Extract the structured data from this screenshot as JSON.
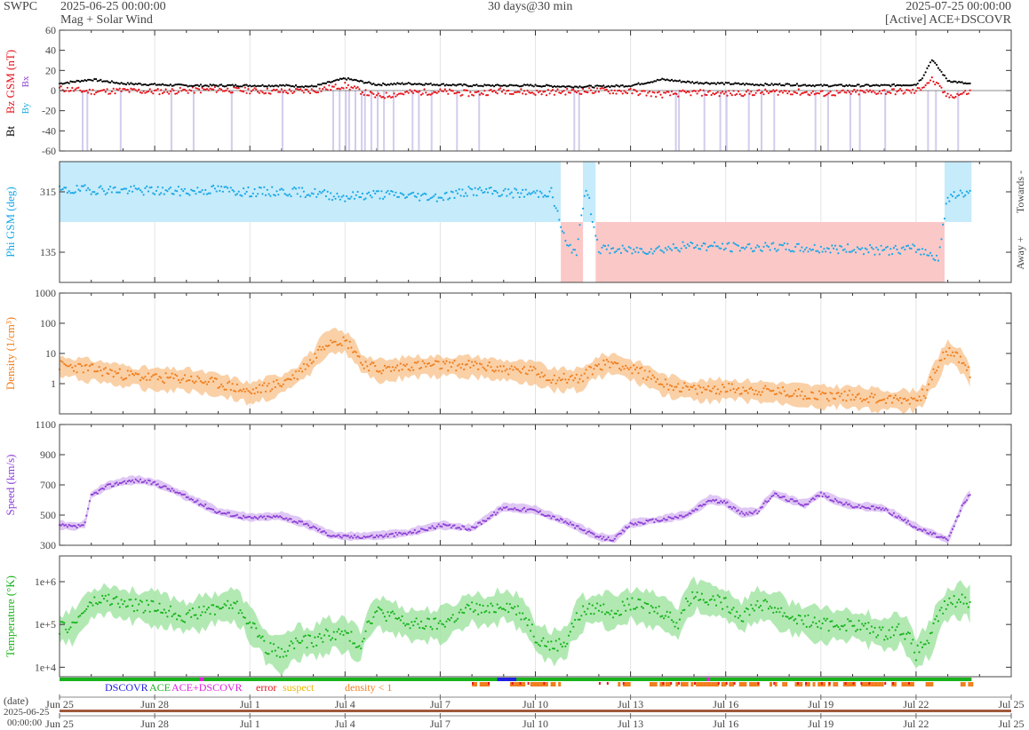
{
  "header": {
    "org": "SWPC",
    "start_time": "2025-06-25 00:00:00",
    "subtitle": "Mag + Solar Wind",
    "span": "30 days@30 min",
    "end_time": "2025-07-25 00:00:00",
    "source": "[Active] ACE+DSCOVR"
  },
  "colors": {
    "bt": "#000000",
    "bz": "#e8141c",
    "phi": "#19a8e6",
    "phi_towards": "#c6ebfb",
    "phi_away": "#fbc8c8",
    "density": "#f07f1e",
    "density_band": "#f8c08a",
    "speed": "#8c3fd6",
    "speed_band": "#d4b4f0",
    "temperature": "#18b41c",
    "temperature_band": "#98e29a",
    "southward_shade": "#c8bfe8",
    "grid": "#e4e4e4"
  },
  "time_axis": {
    "days": 30,
    "tick_days": [
      0,
      3,
      6,
      9,
      12,
      15,
      18,
      21,
      24,
      27,
      30
    ],
    "tick_labels": [
      "Jun 25",
      "Jun 28",
      "Jul 1",
      "Jul 4",
      "Jul 7",
      "Jul 10",
      "Jul 13",
      "Jul 16",
      "Jul 19",
      "Jul 22",
      "Jul 25"
    ],
    "date_label": "(date)",
    "start_date": "2025-06-25",
    "start_clock": "00:00:00",
    "data_end_day": 28.75
  },
  "chart_data": [
    {
      "type": "line",
      "title": "",
      "ylabel_parts": [
        "Bt",
        "Bz GSM (nT)"
      ],
      "legend_icons": [
        "Bx",
        "By"
      ],
      "ylim": [
        -60,
        60
      ],
      "yticks": [
        -60,
        -40,
        -20,
        0,
        20,
        40,
        60
      ],
      "series": [
        {
          "name": "Bt",
          "x": [
            0,
            1,
            2,
            3,
            4,
            5,
            6,
            7,
            8,
            9,
            10,
            11,
            12,
            13,
            14,
            15,
            16,
            17,
            18,
            19,
            20,
            21,
            22,
            23,
            24,
            25,
            26,
            27,
            27.2,
            27.5,
            28,
            28.75
          ],
          "values": [
            7,
            11,
            7,
            6,
            5,
            5,
            5,
            5,
            4,
            12,
            6,
            7,
            6,
            5,
            5,
            5,
            4,
            4,
            5,
            11,
            8,
            7,
            6,
            6,
            5,
            5,
            5,
            6,
            13,
            31,
            10,
            6
          ]
        },
        {
          "name": "Bz GSM",
          "x": [
            0,
            1,
            2,
            3,
            4,
            5,
            6,
            7,
            8,
            9,
            10,
            11,
            12,
            13,
            14,
            15,
            16,
            17,
            18,
            19,
            20,
            21,
            22,
            23,
            24,
            25,
            26,
            27,
            27.2,
            27.5,
            28,
            28.75
          ],
          "values": [
            2,
            -1,
            0,
            -1,
            0,
            1,
            0,
            -1,
            0,
            5,
            -6,
            -2,
            -1,
            -3,
            0,
            -2,
            -1,
            0,
            -1,
            -4,
            -2,
            -3,
            -2,
            -1,
            -3,
            -2,
            -1,
            -1,
            4,
            11,
            -6,
            -1
          ]
        }
      ],
      "southward_days": [
        0.7,
        0.85,
        1.9,
        3.5,
        4.2,
        5.4,
        7.0,
        8.6,
        8.8,
        9.0,
        9.1,
        9.3,
        9.5,
        9.6,
        9.8,
        10.0,
        10.2,
        10.5,
        11.1,
        11.3,
        11.7,
        12.5,
        13.2,
        16.2,
        16.35,
        19.4,
        19.5,
        20.3,
        20.8,
        21.0,
        21.7,
        22.1,
        22.5,
        23.8,
        24.2,
        24.9,
        25.2,
        26.0,
        27.35,
        27.6,
        28.3
      ]
    },
    {
      "type": "scatter",
      "title": "",
      "ylabel": "Phi GSM (deg)",
      "right_labels": [
        "Towards -",
        "Away +"
      ],
      "ylim": [
        45,
        405
      ],
      "yticks": [
        135,
        315
      ],
      "sectors": [
        {
          "start": 0,
          "end": 8.5,
          "sector": "towards"
        },
        {
          "start": 8.5,
          "end": 15.8,
          "sector": "towards"
        },
        {
          "start": 15.8,
          "end": 16.5,
          "sector": "away"
        },
        {
          "start": 16.5,
          "end": 16.9,
          "sector": "towards"
        },
        {
          "start": 16.9,
          "end": 27.9,
          "sector": "away"
        },
        {
          "start": 27.9,
          "end": 28.75,
          "sector": "towards"
        }
      ],
      "series": [
        {
          "name": "Phi GSM",
          "x": [
            0,
            1,
            2,
            3,
            4,
            5,
            6,
            7,
            8,
            9,
            10,
            11,
            12,
            13,
            14,
            15,
            15.5,
            16,
            16.3,
            16.6,
            17,
            18,
            19,
            20,
            21,
            22,
            23,
            24,
            25,
            26,
            27,
            27.7,
            28,
            28.4,
            28.75
          ],
          "values": [
            318,
            322,
            320,
            318,
            316,
            322,
            314,
            316,
            312,
            300,
            308,
            304,
            300,
            318,
            312,
            310,
            314,
            150,
            140,
            330,
            145,
            140,
            145,
            155,
            150,
            150,
            148,
            145,
            145,
            140,
            145,
            120,
            300,
            305,
            320
          ]
        }
      ]
    },
    {
      "type": "area",
      "title": "",
      "ylabel": "Density (1/cm³)",
      "scale": "log",
      "ylim": [
        0.1,
        1000
      ],
      "yticks": [
        1,
        10,
        100,
        1000
      ],
      "series": [
        {
          "name": "Density",
          "x": [
            0,
            1,
            2,
            3,
            4,
            4.5,
            5,
            6,
            7,
            7.5,
            8,
            8.6,
            9,
            9.5,
            10,
            10.5,
            11,
            12,
            13,
            14,
            15,
            15.5,
            16,
            16.5,
            17,
            17.5,
            18,
            19,
            20,
            21,
            22,
            23,
            24,
            25,
            26,
            27,
            27.3,
            27.7,
            28,
            28.5,
            28.75
          ],
          "values": [
            4,
            3,
            2,
            1.5,
            1.5,
            1.2,
            1,
            0.5,
            1,
            2,
            6,
            30,
            25,
            5,
            3,
            3,
            4,
            4,
            4,
            3,
            2.5,
            1.5,
            1.5,
            1.5,
            4,
            5,
            3,
            1,
            0.6,
            0.7,
            0.6,
            0.5,
            0.4,
            0.4,
            0.3,
            0.3,
            0.5,
            3,
            12,
            5,
            1
          ]
        }
      ]
    },
    {
      "type": "area",
      "title": "",
      "ylabel": "Speed (km/s)",
      "ylim": [
        300,
        1100
      ],
      "yticks": [
        300,
        500,
        700,
        900,
        1100
      ],
      "series": [
        {
          "name": "Speed",
          "x": [
            0,
            0.5,
            0.8,
            1,
            1.5,
            2,
            2.5,
            3,
            3.5,
            4,
            4.5,
            5,
            6,
            7,
            8,
            8.5,
            9,
            10,
            11,
            12,
            12.5,
            13,
            13.5,
            14,
            15,
            16,
            16.5,
            17,
            17.5,
            18,
            19,
            19.3,
            19.8,
            20.5,
            21,
            21.5,
            22,
            22.5,
            23,
            23.5,
            24,
            24.5,
            25,
            26,
            27,
            27.3,
            27.7,
            28,
            28.5,
            28.75
          ],
          "values": [
            430,
            420,
            440,
            630,
            690,
            720,
            730,
            710,
            670,
            620,
            570,
            520,
            480,
            490,
            420,
            370,
            355,
            360,
            380,
            430,
            420,
            410,
            480,
            550,
            530,
            450,
            400,
            350,
            340,
            440,
            470,
            480,
            500,
            600,
            580,
            510,
            520,
            640,
            600,
            570,
            640,
            590,
            560,
            540,
            420,
            390,
            360,
            330,
            580,
            650
          ]
        }
      ]
    },
    {
      "type": "area",
      "title": "",
      "ylabel": "Temperature (°K)",
      "scale": "log",
      "ylim": [
        6000,
        4000000
      ],
      "yticks": [
        10000,
        100000,
        1000000
      ],
      "ytick_labels": [
        "1e+4",
        "1e+5",
        "1e+6"
      ],
      "series": [
        {
          "name": "Temperature",
          "x": [
            0,
            0.5,
            1,
            1.5,
            2,
            3,
            4,
            4.5,
            5,
            5.5,
            6,
            6.5,
            7,
            7.5,
            8,
            8.5,
            9,
            9.5,
            10,
            10.5,
            11,
            12,
            12.5,
            13,
            13.5,
            14,
            14.5,
            15,
            15.5,
            16,
            16.5,
            17,
            17.5,
            18,
            19,
            19.5,
            20,
            21,
            21.5,
            22,
            22.5,
            23,
            24,
            25,
            26,
            26.5,
            27,
            27.5,
            28,
            28.5,
            28.75
          ],
          "values": [
            80000,
            100000,
            300000,
            400000,
            300000,
            250000,
            150000,
            200000,
            250000,
            300000,
            100000,
            30000,
            20000,
            40000,
            40000,
            60000,
            60000,
            30000,
            200000,
            150000,
            100000,
            100000,
            150000,
            250000,
            200000,
            300000,
            200000,
            50000,
            30000,
            40000,
            200000,
            250000,
            200000,
            300000,
            200000,
            100000,
            500000,
            300000,
            150000,
            300000,
            250000,
            150000,
            100000,
            100000,
            60000,
            80000,
            20000,
            50000,
            300000,
            400000,
            300000
          ]
        }
      ]
    }
  ],
  "status_bar": {
    "legend": [
      {
        "label": "DSCOVR",
        "color": "#2020e0"
      },
      {
        "label": "ACE",
        "color": "#18b41c"
      },
      {
        "label": "ACE+DSCOVR",
        "color": "#e020e0"
      },
      {
        "label": "error",
        "color": "#e8141c"
      },
      {
        "label": "suspect",
        "color": "#e8b800"
      },
      {
        "label": "density < 1",
        "color": "#f07f1e"
      }
    ],
    "flag_segments": [
      {
        "start": 4.4,
        "end": 4.55,
        "color": "#e020e0"
      },
      {
        "start": 13.8,
        "end": 14.4,
        "color": "#2020e0"
      },
      {
        "start": 20.4,
        "end": 20.5,
        "color": "#e020e0"
      }
    ],
    "density_low_segments": [
      {
        "start": 13.0,
        "end": 13.5
      },
      {
        "start": 14.2,
        "end": 15.8
      },
      {
        "start": 17.6,
        "end": 18.0
      },
      {
        "start": 18.6,
        "end": 19.0
      },
      {
        "start": 19.1,
        "end": 26.9
      },
      {
        "start": 27.3,
        "end": 27.5
      },
      {
        "start": 28.4,
        "end": 28.75
      }
    ]
  }
}
